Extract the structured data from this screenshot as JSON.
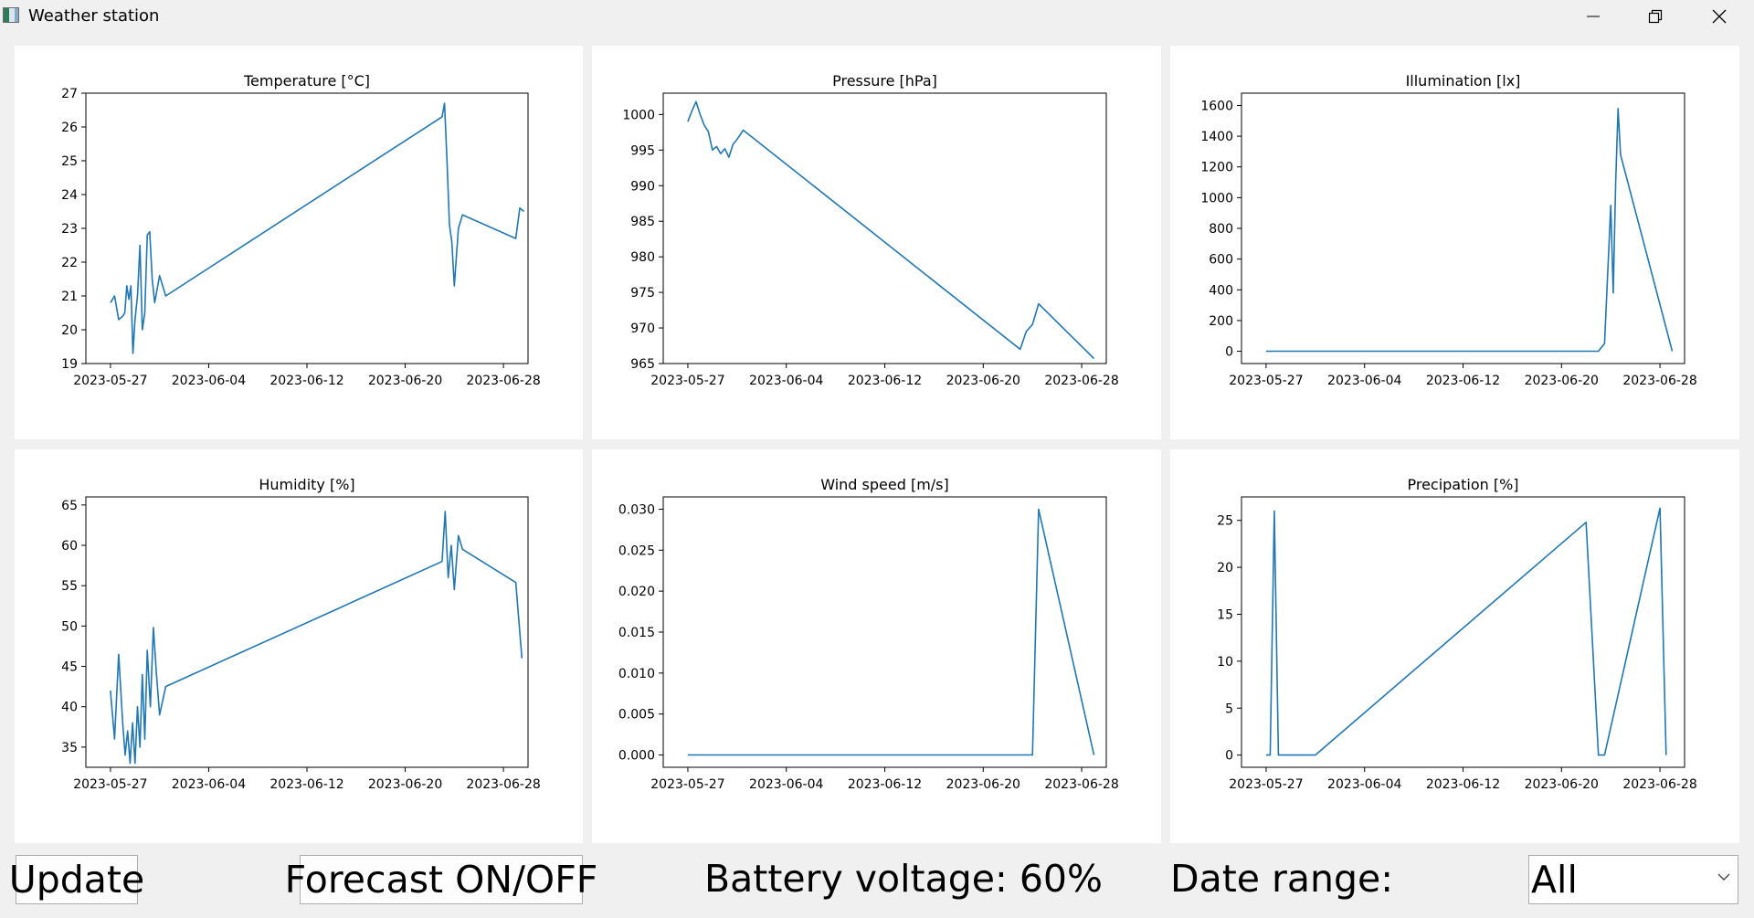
{
  "window": {
    "title": "Weather station"
  },
  "charts": [
    {
      "type": "line",
      "title": "Temperature [°C]",
      "xticks": [
        "2023-05-27",
        "2023-06-04",
        "2023-06-12",
        "2023-06-20",
        "2023-06-28"
      ],
      "yticks": [
        19,
        20,
        21,
        22,
        23,
        24,
        25,
        26,
        27
      ],
      "xlim": [
        "2023-05-25",
        "2023-06-30"
      ],
      "ylim": [
        19,
        27
      ],
      "points": [
        [
          "2023-05-27",
          20.8
        ],
        [
          "2023-05-27",
          21.0
        ],
        [
          "2023-05-27",
          20.3
        ],
        [
          "2023-05-28",
          20.4
        ],
        [
          "2023-05-28",
          20.5
        ],
        [
          "2023-05-28",
          21.3
        ],
        [
          "2023-05-28",
          20.9
        ],
        [
          "2023-05-28",
          21.3
        ],
        [
          "2023-05-28",
          19.3
        ],
        [
          "2023-05-29",
          20.3
        ],
        [
          "2023-05-29",
          21.0
        ],
        [
          "2023-05-29",
          22.5
        ],
        [
          "2023-05-29",
          20.0
        ],
        [
          "2023-05-29",
          20.5
        ],
        [
          "2023-05-30",
          22.8
        ],
        [
          "2023-05-30",
          22.9
        ],
        [
          "2023-05-30",
          21.5
        ],
        [
          "2023-05-30",
          20.8
        ],
        [
          "2023-05-30",
          21.2
        ],
        [
          "2023-05-31",
          21.6
        ],
        [
          "2023-05-31",
          21.0
        ],
        [
          "2023-06-23",
          26.3
        ],
        [
          "2023-06-23",
          26.7
        ],
        [
          "2023-06-23",
          25.0
        ],
        [
          "2023-06-23",
          23.1
        ],
        [
          "2023-06-23",
          22.6
        ],
        [
          "2023-06-24",
          21.3
        ],
        [
          "2023-06-24",
          23.0
        ],
        [
          "2023-06-24",
          23.4
        ],
        [
          "2023-06-29",
          22.7
        ],
        [
          "2023-06-29",
          23.6
        ],
        [
          "2023-06-29",
          23.5
        ]
      ]
    },
    {
      "type": "line",
      "title": "Pressure [hPa]",
      "xticks": [
        "2023-05-27",
        "2023-06-04",
        "2023-06-12",
        "2023-06-20",
        "2023-06-28"
      ],
      "yticks": [
        965,
        970,
        975,
        980,
        985,
        990,
        995,
        1000
      ],
      "xlim": [
        "2023-05-25",
        "2023-06-30"
      ],
      "ylim": [
        965,
        1003
      ],
      "points": [
        [
          "2023-05-27",
          999.0
        ],
        [
          "2023-05-27",
          1000.5
        ],
        [
          "2023-05-27",
          1001.8
        ],
        [
          "2023-05-28",
          1000.0
        ],
        [
          "2023-05-28",
          998.5
        ],
        [
          "2023-05-28",
          997.6
        ],
        [
          "2023-05-29",
          995.0
        ],
        [
          "2023-05-29",
          995.5
        ],
        [
          "2023-05-29",
          994.5
        ],
        [
          "2023-05-30",
          995.2
        ],
        [
          "2023-05-30",
          994.0
        ],
        [
          "2023-05-30",
          995.8
        ],
        [
          "2023-05-31",
          996.5
        ],
        [
          "2023-05-31",
          997.8
        ],
        [
          "2023-06-23",
          967.0
        ],
        [
          "2023-06-23",
          969.5
        ],
        [
          "2023-06-24",
          970.5
        ],
        [
          "2023-06-24",
          973.4
        ],
        [
          "2023-06-29",
          965.7
        ]
      ]
    },
    {
      "type": "line",
      "title": "Illumination [lx]",
      "xticks": [
        "2023-05-27",
        "2023-06-04",
        "2023-06-12",
        "2023-06-20",
        "2023-06-28"
      ],
      "yticks": [
        0,
        200,
        400,
        600,
        800,
        1000,
        1200,
        1400,
        1600
      ],
      "xlim": [
        "2023-05-25",
        "2023-06-30"
      ],
      "ylim": [
        -80,
        1680
      ],
      "points": [
        [
          "2023-05-27",
          0
        ],
        [
          "2023-06-23",
          0
        ],
        [
          "2023-06-23",
          50
        ],
        [
          "2023-06-24",
          950
        ],
        [
          "2023-06-24",
          380
        ],
        [
          "2023-06-24",
          1100
        ],
        [
          "2023-06-24",
          1580
        ],
        [
          "2023-06-24",
          1280
        ],
        [
          "2023-06-29",
          0
        ]
      ]
    },
    {
      "type": "line",
      "title": "Humidity [%]",
      "xticks": [
        "2023-05-27",
        "2023-06-04",
        "2023-06-12",
        "2023-06-20",
        "2023-06-28"
      ],
      "yticks": [
        35,
        40,
        45,
        50,
        55,
        60,
        65
      ],
      "xlim": [
        "2023-05-25",
        "2023-06-30"
      ],
      "ylim": [
        32.5,
        66
      ],
      "points": [
        [
          "2023-05-27",
          42
        ],
        [
          "2023-05-27",
          36
        ],
        [
          "2023-05-27",
          46.5
        ],
        [
          "2023-05-28",
          38
        ],
        [
          "2023-05-28",
          34
        ],
        [
          "2023-05-28",
          37
        ],
        [
          "2023-05-28",
          33
        ],
        [
          "2023-05-28",
          38
        ],
        [
          "2023-05-29",
          33
        ],
        [
          "2023-05-29",
          40
        ],
        [
          "2023-05-29",
          35
        ],
        [
          "2023-05-29",
          44
        ],
        [
          "2023-05-29",
          36
        ],
        [
          "2023-05-30",
          47
        ],
        [
          "2023-05-30",
          40
        ],
        [
          "2023-05-30",
          49.8
        ],
        [
          "2023-05-30",
          44
        ],
        [
          "2023-05-31",
          39
        ],
        [
          "2023-05-31",
          42.5
        ],
        [
          "2023-06-23",
          58
        ],
        [
          "2023-06-23",
          64.2
        ],
        [
          "2023-06-23",
          56
        ],
        [
          "2023-06-23",
          60
        ],
        [
          "2023-06-24",
          54.5
        ],
        [
          "2023-06-24",
          61.2
        ],
        [
          "2023-06-24",
          59.5
        ],
        [
          "2023-06-29",
          55.4
        ],
        [
          "2023-06-29",
          46
        ]
      ]
    },
    {
      "type": "line",
      "title": "Wind speed [m/s]",
      "xticks": [
        "2023-05-27",
        "2023-06-04",
        "2023-06-12",
        "2023-06-20",
        "2023-06-28"
      ],
      "yticks": [
        "0.000",
        "0.005",
        "0.010",
        "0.015",
        "0.020",
        "0.025",
        "0.030"
      ],
      "xlim": [
        "2023-05-25",
        "2023-06-30"
      ],
      "ylim": [
        -0.0015,
        0.0315
      ],
      "points": [
        [
          "2023-05-27",
          0
        ],
        [
          "2023-06-24",
          0
        ],
        [
          "2023-06-24",
          0.03
        ],
        [
          "2023-06-29",
          0
        ]
      ]
    },
    {
      "type": "line",
      "title": "Precipation [%]",
      "xticks": [
        "2023-05-27",
        "2023-06-04",
        "2023-06-12",
        "2023-06-20",
        "2023-06-28"
      ],
      "yticks": [
        0,
        5,
        10,
        15,
        20,
        25
      ],
      "xlim": [
        "2023-05-25",
        "2023-06-30"
      ],
      "ylim": [
        -1.3,
        27.5
      ],
      "points": [
        [
          "2023-05-27",
          0
        ],
        [
          "2023-05-27",
          0
        ],
        [
          "2023-05-27",
          26
        ],
        [
          "2023-05-28",
          0
        ],
        [
          "2023-05-31",
          0
        ],
        [
          "2023-06-22",
          24.8
        ],
        [
          "2023-06-23",
          0
        ],
        [
          "2023-06-23",
          0
        ],
        [
          "2023-06-28",
          26.3
        ],
        [
          "2023-06-28",
          0
        ]
      ]
    }
  ],
  "controls": {
    "update_label": "Update",
    "forecast_label": "Forecast ON/OFF",
    "battery_text": "Battery voltage: 60%",
    "date_range_label": "Date range:",
    "date_range_value": "All"
  },
  "colors": {
    "line": "#1f77b4",
    "panel": "#ffffff",
    "background": "#f0f0f0"
  },
  "icons": {
    "app": "app-icon",
    "minimize": "minimize-icon",
    "restore": "restore-icon",
    "close": "close-icon",
    "dropdown": "chevron-down-icon"
  }
}
